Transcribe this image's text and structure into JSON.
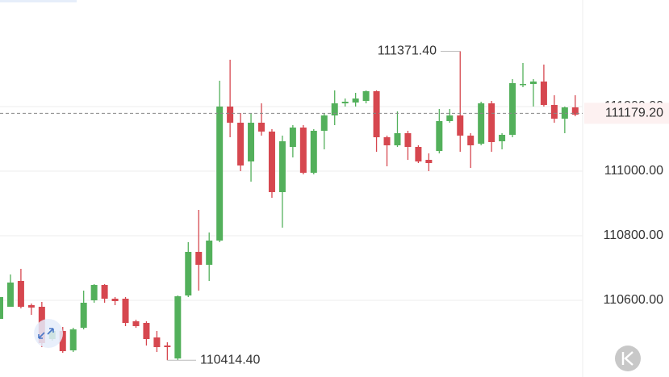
{
  "chart_data": {
    "type": "candlestick",
    "open": [
      110542.5,
      110580,
      110660,
      110585,
      110580,
      110480,
      110505,
      110445,
      110515,
      110600,
      110647.5,
      110605,
      110605,
      110535,
      110530,
      110485,
      110460,
      110420,
      110615,
      110750,
      110710,
      110785,
      111200,
      111150,
      111030,
      111150,
      111122.5,
      110935,
      111075,
      111135,
      110995,
      111125,
      111172.5,
      111210,
      111212.5,
      111217.5,
      111247.5,
      111105,
      111080,
      111117.5,
      111075,
      111035,
      111062.5,
      111155,
      111172.5,
      111110,
      111085,
      111210,
      111092.5,
      111112.5,
      111267.5,
      111270,
      111277.5,
      111205,
      111162.5,
      111197.5
    ],
    "high": [
      110610,
      110680,
      110697.5,
      110590,
      110595,
      110510,
      110517.5,
      110515,
      110630,
      110650,
      110650,
      110610,
      110610,
      110540,
      110535,
      110505,
      110470,
      110615,
      110780,
      110880,
      110810,
      111280,
      111345,
      111180,
      111180,
      111210,
      111130,
      111110,
      111142.5,
      111142.5,
      111130,
      111180,
      111250,
      111225,
      111242.5,
      111250,
      111250,
      111110,
      111185,
      111125,
      111080,
      111055,
      111192.5,
      111192.5,
      111371.4,
      111117.5,
      111215,
      111217.5,
      111117.5,
      111285,
      111335,
      111285,
      111330,
      111235,
      111200,
      111235
    ],
    "low": [
      110542.5,
      110580,
      110575,
      110555,
      110455,
      110475,
      110437.5,
      110440,
      110510,
      110592.5,
      110592.5,
      110585,
      110520,
      110515,
      110460,
      110440,
      110414.4,
      110415,
      110610,
      110630,
      110660,
      110780,
      111105,
      111000,
      110967.5,
      111110,
      110917.5,
      110825,
      111042.5,
      110990,
      110990,
      111067.5,
      111142.5,
      111200,
      111200,
      111210,
      111060,
      111015,
      111075,
      111035,
      111025,
      111000,
      111055,
      111150,
      111060,
      111010,
      111080,
      111060,
      111067.5,
      111105,
      111260,
      111200,
      111200,
      111150,
      111117.5,
      111170
    ],
    "close": [
      110610,
      110655,
      110580,
      110577.5,
      110467.5,
      110505,
      110442.5,
      110510,
      110592.5,
      110647.5,
      110605,
      110597.5,
      110530,
      110520,
      110480,
      110455,
      110455,
      110612.5,
      110750,
      110710,
      110785,
      111200,
      111150,
      111017.5,
      111150,
      111122.5,
      110935,
      111092.5,
      111135,
      110995,
      111125,
      111172.5,
      111210,
      111215,
      111225,
      111247.5,
      111105,
      111080,
      111117.5,
      111075,
      111030,
      111025,
      111155,
      111172.5,
      111110,
      111080,
      111210,
      111090,
      111112.5,
      111272.5,
      111270,
      111277.5,
      111205,
      111162.5,
      111197.5,
      111175
    ],
    "up_color": "#53b05b",
    "down_color": "#d6474f",
    "ylim": [
      110362.5,
      111530
    ],
    "yticks": [
      {
        "value": 110600,
        "label": "110600.00"
      },
      {
        "value": 110800,
        "label": "110800.00"
      },
      {
        "value": 111000,
        "label": "111000.00"
      },
      {
        "value": 111200,
        "label": "111200.00"
      }
    ],
    "grid": true,
    "max_label": {
      "value": 111371.4,
      "label": "111371.40"
    },
    "min_label": {
      "value": 110414.4,
      "label": "110414.40"
    },
    "current_price": {
      "value": 111179.2,
      "label": "111179.20"
    }
  }
}
